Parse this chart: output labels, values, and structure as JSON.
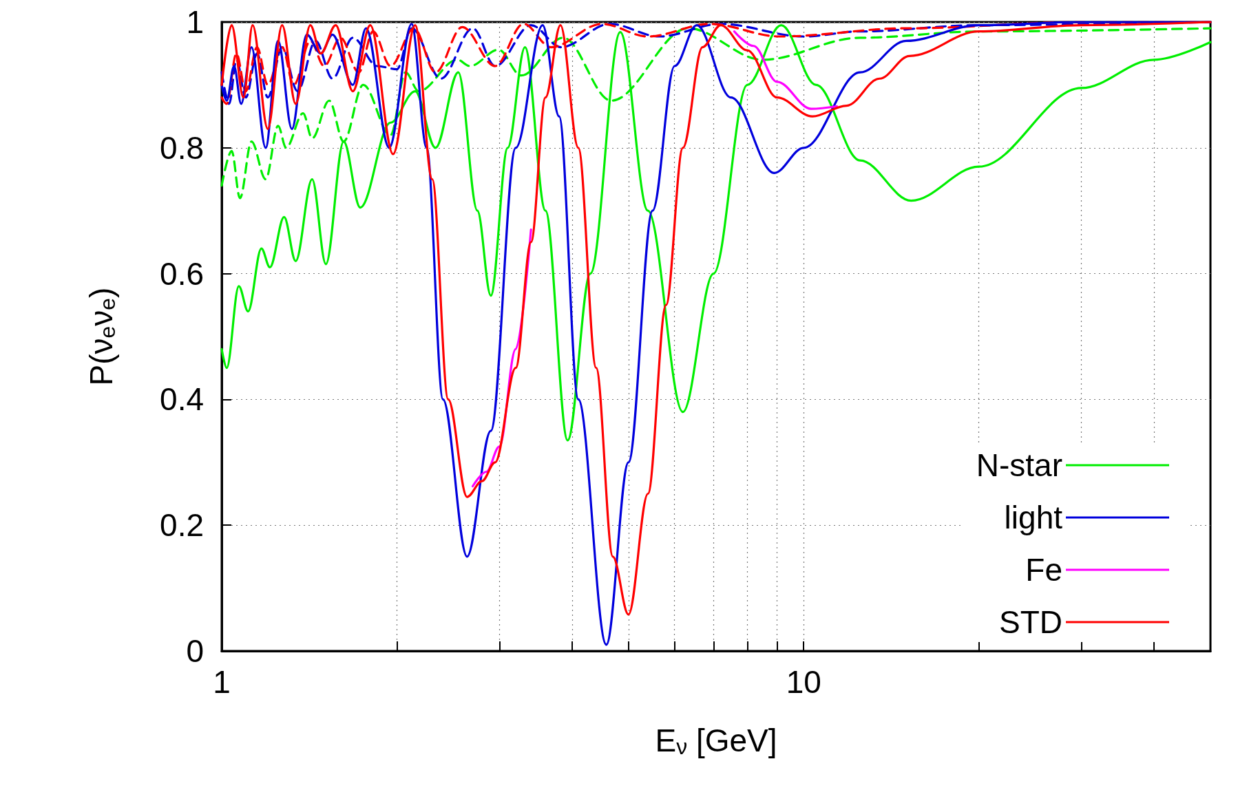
{
  "chart_data": {
    "type": "line",
    "xlabel": "E$_{ν}$ [GeV]",
    "ylabel": "P(ν$_{e}$ν$_{e}$)",
    "log": "x",
    "xlim": [
      1,
      50
    ],
    "ylim": [
      0,
      1
    ],
    "xticks": [
      1,
      {
        "value": 2,
        "label": null
      },
      {
        "value": 3,
        "label": null
      },
      {
        "value": 4,
        "label": null
      },
      {
        "value": 5,
        "label": null
      },
      {
        "value": 6,
        "label": null
      },
      {
        "value": 7,
        "label": null
      },
      {
        "value": 8,
        "label": null
      },
      {
        "value": 9,
        "label": null
      },
      10,
      {
        "value": 20,
        "label": null
      },
      {
        "value": 30,
        "label": null
      },
      {
        "value": 40,
        "label": null
      }
    ],
    "yticks": [
      0,
      0.2,
      0.4,
      0.6,
      0.8,
      1
    ],
    "grid": true,
    "legend": "bottom right",
    "marker": "none",
    "series": [
      {
        "name": "N-star",
        "color": "#00ee00",
        "line_style": "solid",
        "x": [
          1.0,
          1.02,
          1.07,
          1.11,
          1.17,
          1.21,
          1.28,
          1.34,
          1.43,
          1.51,
          1.62,
          1.73,
          1.95,
          2.15,
          2.33,
          2.55,
          2.75,
          2.9,
          3.1,
          3.32,
          3.6,
          3.93,
          4.3,
          4.84,
          5.4,
          6.2,
          7.0,
          8.0,
          9.15,
          10.5,
          12.5,
          15.3,
          20,
          30,
          40,
          50
        ],
        "values": [
          0.48,
          0.45,
          0.58,
          0.54,
          0.64,
          0.61,
          0.69,
          0.62,
          0.75,
          0.615,
          0.81,
          0.705,
          0.84,
          0.89,
          0.8,
          0.92,
          0.7,
          0.565,
          0.8,
          0.96,
          0.7,
          0.335,
          0.6,
          0.984,
          0.7,
          0.38,
          0.6,
          0.9,
          0.995,
          0.9,
          0.78,
          0.716,
          0.77,
          0.895,
          0.94,
          0.968
        ]
      },
      {
        "name": "light",
        "color": "#0000dd",
        "line_style": "solid",
        "x": [
          1.0,
          1.02,
          1.05,
          1.08,
          1.125,
          1.19,
          1.25,
          1.32,
          1.4,
          1.48,
          1.55,
          1.68,
          1.77,
          1.94,
          2.12,
          2.25,
          2.4,
          2.64,
          2.9,
          3.2,
          3.56,
          3.8,
          4.1,
          4.58,
          5.0,
          5.5,
          6.0,
          6.55,
          7.5,
          8.9,
          10,
          12.5,
          15,
          20,
          30,
          50
        ],
        "values": [
          0.9,
          0.875,
          0.93,
          0.87,
          0.96,
          0.8,
          0.97,
          0.83,
          0.98,
          0.95,
          0.98,
          0.9,
          0.99,
          0.8,
          0.997,
          0.8,
          0.4,
          0.15,
          0.35,
          0.8,
          0.995,
          0.85,
          0.4,
          0.01,
          0.3,
          0.7,
          0.93,
          0.995,
          0.88,
          0.76,
          0.8,
          0.92,
          0.97,
          0.995,
          1.0,
          1.0
        ]
      },
      {
        "name": "Fe",
        "color": "#ff00ff",
        "line_style": "solid",
        "x": [
          2.7,
          2.85,
          3.0,
          3.2,
          3.4,
          5.0,
          7.6,
          8.2,
          9,
          10.3,
          11.4
        ],
        "values": [
          0.262,
          0.285,
          0.325,
          0.48,
          0.67,
          null,
          0.985,
          0.962,
          0.905,
          0.862,
          0.866
        ]
      },
      {
        "name": "STD",
        "color": "#ff0000",
        "line_style": "solid",
        "x": [
          1.0,
          1.04,
          1.09,
          1.13,
          1.2,
          1.27,
          1.34,
          1.42,
          1.48,
          1.57,
          1.68,
          1.8,
          1.97,
          2.15,
          2.3,
          2.45,
          2.64,
          2.8,
          2.95,
          3.2,
          3.4,
          3.6,
          3.82,
          4.1,
          4.4,
          4.7,
          5.0,
          5.4,
          5.8,
          6.2,
          6.7,
          7.2,
          8,
          9,
          10.35,
          11.85,
          13.5,
          15.2,
          20,
          30,
          50
        ],
        "values": [
          0.9,
          0.995,
          0.88,
          0.995,
          0.83,
          0.995,
          0.87,
          0.995,
          0.95,
          0.995,
          0.89,
          0.995,
          0.79,
          0.995,
          0.75,
          0.4,
          0.245,
          0.27,
          0.3,
          0.45,
          0.65,
          0.88,
          0.995,
          0.8,
          0.45,
          0.15,
          0.058,
          0.25,
          0.55,
          0.8,
          0.96,
          0.995,
          0.955,
          0.88,
          0.85,
          0.867,
          0.91,
          0.946,
          0.985,
          0.995,
          1.0
        ]
      },
      {
        "color": "#00ee00",
        "line_style": "dashed",
        "x": [
          1.0,
          1.04,
          1.075,
          1.125,
          1.19,
          1.25,
          1.29,
          1.38,
          1.43,
          1.53,
          1.62,
          1.75,
          1.95,
          2.07,
          2.18,
          2.54,
          2.67,
          2.99,
          3.27,
          3.86,
          4.67,
          6.33,
          8.5,
          12.5,
          20,
          50
        ],
        "values": [
          0.74,
          0.795,
          0.72,
          0.81,
          0.75,
          0.835,
          0.8,
          0.855,
          0.815,
          0.875,
          0.81,
          0.9,
          0.82,
          0.92,
          0.89,
          0.94,
          0.93,
          0.956,
          0.915,
          0.975,
          0.875,
          0.99,
          0.94,
          0.975,
          0.985,
          0.99
        ]
      },
      {
        "color": "#0000dd",
        "line_style": "dashed",
        "x": [
          1.0,
          1.03,
          1.06,
          1.1,
          1.15,
          1.2,
          1.27,
          1.35,
          1.45,
          1.55,
          1.68,
          1.85,
          2.0,
          2.12,
          2.38,
          2.7,
          2.95,
          3.4,
          3.83,
          4.64,
          5.65,
          7.2,
          10,
          12.5,
          20,
          50
        ],
        "values": [
          0.92,
          0.87,
          0.94,
          0.88,
          0.95,
          0.88,
          0.96,
          0.89,
          0.97,
          0.91,
          0.975,
          0.93,
          0.925,
          0.99,
          0.91,
          0.99,
          0.93,
          0.995,
          0.96,
          0.997,
          0.977,
          0.997,
          0.977,
          0.985,
          0.995,
          1.0
        ]
      },
      {
        "color": "#ff0000",
        "line_style": "dashed",
        "x": [
          1.0,
          1.02,
          1.06,
          1.1,
          1.15,
          1.2,
          1.27,
          1.33,
          1.42,
          1.5,
          1.6,
          1.72,
          1.82,
          1.95,
          2.14,
          2.33,
          2.59,
          2.95,
          3.3,
          3.68,
          4.5,
          5.4,
          6.9,
          9.1,
          15,
          30,
          50
        ],
        "values": [
          0.88,
          0.87,
          0.95,
          0.89,
          0.96,
          0.9,
          0.96,
          0.9,
          0.97,
          0.93,
          0.975,
          0.92,
          0.985,
          0.93,
          0.99,
          0.92,
          0.992,
          0.93,
          0.997,
          0.96,
          0.997,
          0.977,
          0.997,
          0.977,
          0.99,
          1.0,
          1.0
        ]
      }
    ]
  }
}
